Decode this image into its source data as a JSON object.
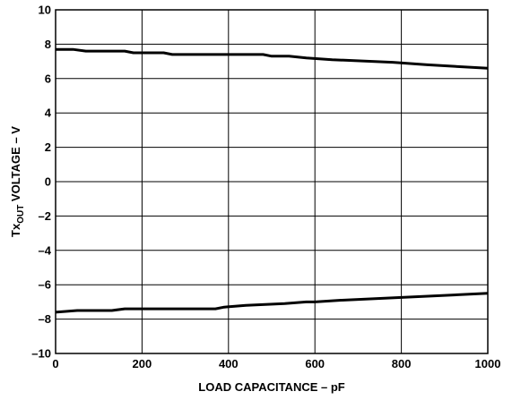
{
  "chart_data": {
    "type": "line",
    "title": "",
    "xlabel": "LOAD CAPACITANCE – pF",
    "ylabel_main": "Tx",
    "ylabel_sub": "OUT",
    "ylabel_rest": " VOLTAGE – V",
    "xlim": [
      0,
      1000
    ],
    "ylim": [
      -10,
      10
    ],
    "x_ticks": [
      "0",
      "200",
      "400",
      "600",
      "800",
      "1000"
    ],
    "x_tick_values": [
      0,
      200,
      400,
      600,
      800,
      1000
    ],
    "y_ticks": [
      "10",
      "8",
      "6",
      "4",
      "2",
      "0",
      "–2",
      "–4",
      "–6",
      "–8",
      "–10"
    ],
    "y_tick_values": [
      10,
      8,
      6,
      4,
      2,
      0,
      -2,
      -4,
      -6,
      -8,
      -10
    ],
    "grid": true,
    "series": [
      {
        "x": [
          0,
          40,
          70,
          160,
          180,
          250,
          270,
          380,
          480,
          500,
          540,
          580,
          640,
          780,
          860,
          1000
        ],
        "y": [
          7.7,
          7.7,
          7.6,
          7.6,
          7.5,
          7.5,
          7.4,
          7.4,
          7.4,
          7.3,
          7.3,
          7.2,
          7.1,
          6.95,
          6.8,
          6.6
        ]
      },
      {
        "x": [
          0,
          50,
          130,
          160,
          370,
          390,
          440,
          530,
          580,
          600,
          660,
          1000
        ],
        "y": [
          -7.6,
          -7.5,
          -7.5,
          -7.4,
          -7.4,
          -7.3,
          -7.2,
          -7.1,
          -7.0,
          -7.0,
          -6.9,
          -6.5
        ]
      }
    ]
  }
}
